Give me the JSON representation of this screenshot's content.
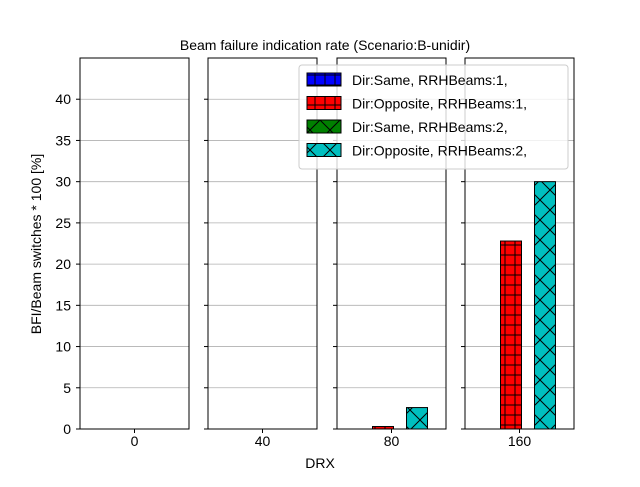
{
  "chart_data": {
    "type": "bar",
    "title": "Beam failure indication rate (Scenario:B-unidir)",
    "xlabel": "DRX",
    "ylabel": "BFI/Beam switches * 100 [%]",
    "ylim": [
      0,
      45
    ],
    "yticks": [
      0,
      5,
      10,
      15,
      20,
      25,
      30,
      35,
      40
    ],
    "grid": true,
    "legend_position": "top-right",
    "categories": [
      "0",
      "40",
      "80",
      "160"
    ],
    "series": [
      {
        "name": "Dir:Same, RRHBeams:1,",
        "color": "#0000ff",
        "hatch": "plus",
        "values": [
          0,
          0,
          0,
          0
        ]
      },
      {
        "name": "Dir:Opposite, RRHBeams:1,",
        "color": "#ff0000",
        "hatch": "plus",
        "values": [
          0,
          0,
          0.3,
          22.8
        ]
      },
      {
        "name": "Dir:Same, RRHBeams:2,",
        "color": "#008000",
        "hatch": "cross",
        "values": [
          0,
          0,
          0,
          0
        ]
      },
      {
        "name": "Dir:Opposite, RRHBeams:2,",
        "color": "#00bfbf",
        "hatch": "cross",
        "values": [
          0,
          0,
          2.6,
          30.0
        ]
      }
    ]
  }
}
